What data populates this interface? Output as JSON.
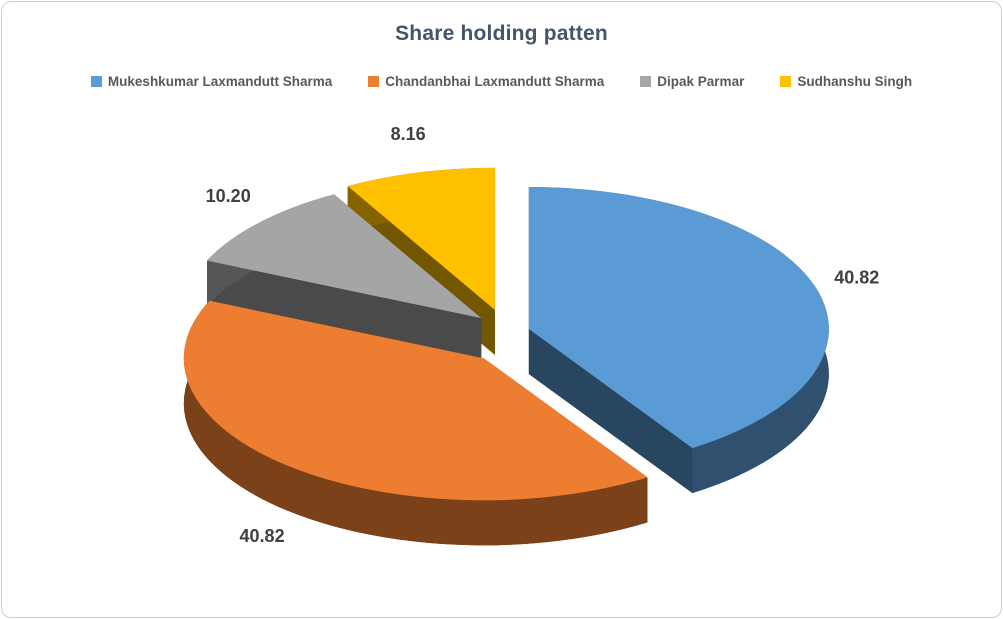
{
  "chart_data": {
    "type": "pie",
    "title": "Share holding patten",
    "effect_3d": true,
    "exploded": true,
    "direction": "clockwise",
    "start_angle_deg": 0,
    "legend_position": "top",
    "series": [
      {
        "name": "Mukeshkumar Laxmandutt Sharma",
        "value": 40.82,
        "label": "40.82",
        "color": "#5B9BD5"
      },
      {
        "name": "Chandanbhai Laxmandutt Sharma",
        "value": 40.82,
        "label": "40.82",
        "color": "#ED7D31"
      },
      {
        "name": "Dipak Parmar",
        "value": 10.2,
        "label": "10.20",
        "color": "#A5A5A5"
      },
      {
        "name": "Sudhanshu Singh",
        "value": 8.16,
        "label": "8.16",
        "color": "#FFC000"
      }
    ]
  },
  "colors": {
    "title": "#44546A",
    "legend_text": "#595959",
    "data_label": "#404040",
    "border": "#CFCFCF",
    "background": "#FFFFFF"
  }
}
